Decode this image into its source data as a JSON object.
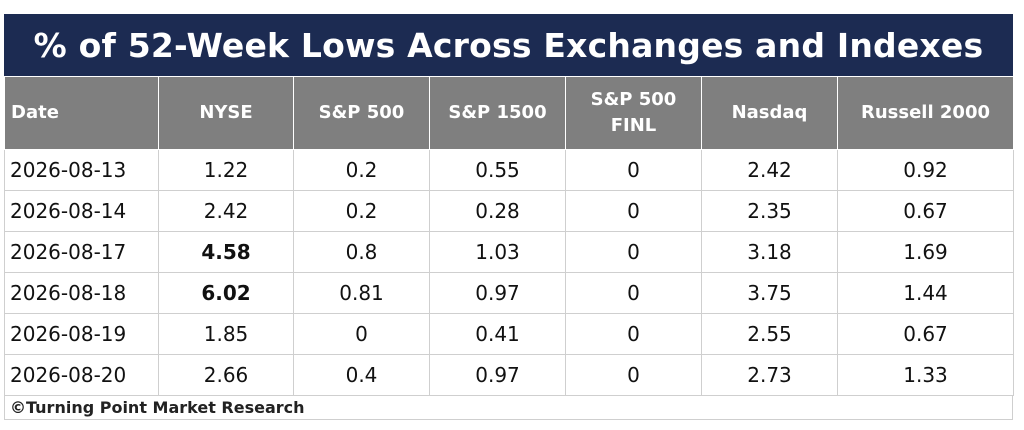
{
  "chart_data": {
    "type": "table",
    "title": "% of 52-Week Lows Across Exchanges and Indexes",
    "columns": [
      {
        "key": "date",
        "label": "Date",
        "line2": ""
      },
      {
        "key": "nyse",
        "label": "NYSE",
        "line2": ""
      },
      {
        "key": "sp500",
        "label": "S&P 500",
        "line2": ""
      },
      {
        "key": "sp1500",
        "label": "S&P 1500",
        "line2": ""
      },
      {
        "key": "sp500finl",
        "label": "S&P 500",
        "line2": "FINL"
      },
      {
        "key": "nasdaq",
        "label": "Nasdaq",
        "line2": ""
      },
      {
        "key": "russell2000",
        "label": "Russell 2000",
        "line2": ""
      }
    ],
    "rows": [
      {
        "date": "2026-08-13",
        "nyse": "1.22",
        "sp500": "0.2",
        "sp1500": "0.55",
        "sp500finl": "0",
        "nasdaq": "2.42",
        "russell2000": "0.92",
        "bold": []
      },
      {
        "date": "2026-08-14",
        "nyse": "2.42",
        "sp500": "0.2",
        "sp1500": "0.28",
        "sp500finl": "0",
        "nasdaq": "2.35",
        "russell2000": "0.67",
        "bold": []
      },
      {
        "date": "2026-08-17",
        "nyse": "4.58",
        "sp500": "0.8",
        "sp1500": "1.03",
        "sp500finl": "0",
        "nasdaq": "3.18",
        "russell2000": "1.69",
        "bold": [
          "nyse"
        ]
      },
      {
        "date": "2026-08-18",
        "nyse": "6.02",
        "sp500": "0.81",
        "sp1500": "0.97",
        "sp500finl": "0",
        "nasdaq": "3.75",
        "russell2000": "1.44",
        "bold": [
          "nyse"
        ]
      },
      {
        "date": "2026-08-19",
        "nyse": "1.85",
        "sp500": "0",
        "sp1500": "0.41",
        "sp500finl": "0",
        "nasdaq": "2.55",
        "russell2000": "0.67",
        "bold": []
      },
      {
        "date": "2026-08-20",
        "nyse": "2.66",
        "sp500": "0.4",
        "sp1500": "0.97",
        "sp500finl": "0",
        "nasdaq": "2.73",
        "russell2000": "1.33",
        "bold": []
      }
    ],
    "footer": "©Turning Point Market Research",
    "colors": {
      "title_background": "#1c2b52",
      "header_background": "#7f7f7f",
      "header_text": "#ffffff",
      "cell_border": "#cfcfcf"
    }
  }
}
